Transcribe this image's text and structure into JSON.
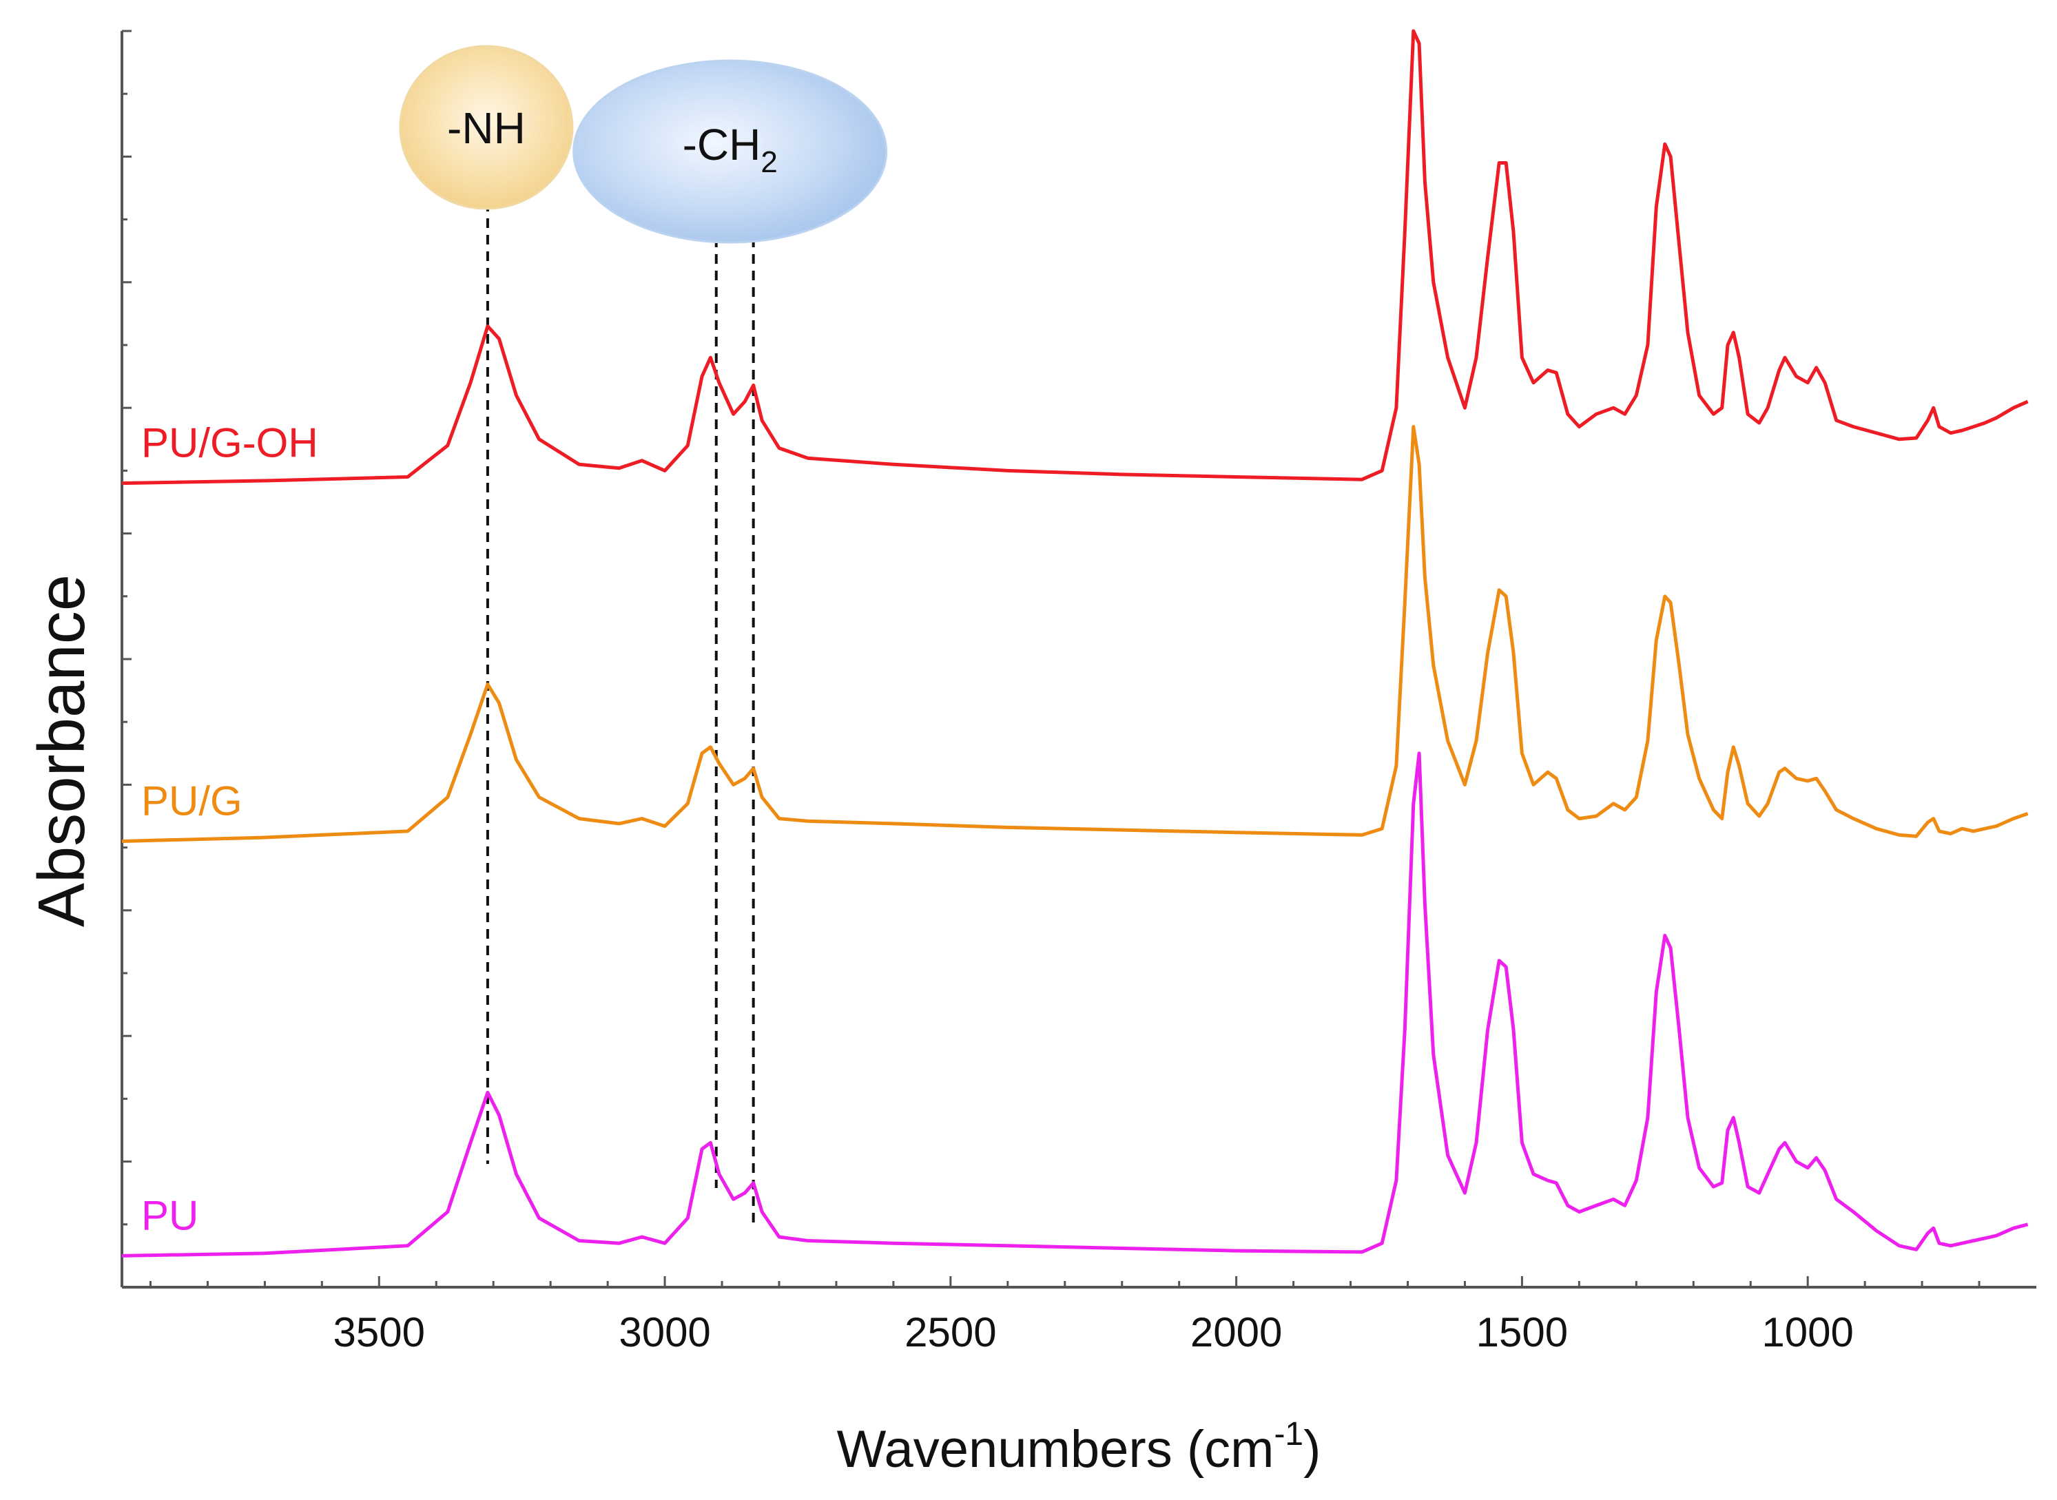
{
  "chart_data": {
    "type": "line",
    "title": "",
    "xlabel_main": "Wavenumbers (cm",
    "xlabel_sup": "-1",
    "xlabel_close": ")",
    "ylabel": "Absorbance",
    "xlim": [
      3950,
      600
    ],
    "x_inverted": true,
    "ylim": [
      0,
      1
    ],
    "y_tick_labels": false,
    "x_ticks": [
      3500,
      3000,
      2500,
      2000,
      1500,
      1000
    ],
    "x_tick_labels": [
      "3500",
      "3000",
      "2500",
      "2000",
      "1500",
      "1000"
    ],
    "grid": false,
    "annotations": [
      {
        "text": "-NH",
        "x": 3310,
        "color": "#f6d79a"
      },
      {
        "text": "-CH",
        "subscript": "2",
        "x": [
          2910,
          2845
        ],
        "color": "#a9c6ec"
      }
    ],
    "series": [
      {
        "name": "PU/G-OH",
        "color": "#ee1c24",
        "offset": 0.64,
        "points": [
          [
            3950,
            0.0
          ],
          [
            3700,
            0.002
          ],
          [
            3450,
            0.005
          ],
          [
            3380,
            0.03
          ],
          [
            3340,
            0.08
          ],
          [
            3310,
            0.125
          ],
          [
            3290,
            0.115
          ],
          [
            3260,
            0.07
          ],
          [
            3220,
            0.035
          ],
          [
            3150,
            0.015
          ],
          [
            3080,
            0.012
          ],
          [
            3040,
            0.018
          ],
          [
            3000,
            0.01
          ],
          [
            2960,
            0.03
          ],
          [
            2935,
            0.085
          ],
          [
            2920,
            0.1
          ],
          [
            2905,
            0.08
          ],
          [
            2880,
            0.055
          ],
          [
            2860,
            0.065
          ],
          [
            2845,
            0.078
          ],
          [
            2830,
            0.05
          ],
          [
            2800,
            0.028
          ],
          [
            2750,
            0.02
          ],
          [
            2600,
            0.015
          ],
          [
            2400,
            0.01
          ],
          [
            2200,
            0.007
          ],
          [
            2000,
            0.005
          ],
          [
            1780,
            0.003
          ],
          [
            1745,
            0.01
          ],
          [
            1720,
            0.06
          ],
          [
            1705,
            0.2
          ],
          [
            1690,
            0.36
          ],
          [
            1680,
            0.35
          ],
          [
            1670,
            0.24
          ],
          [
            1655,
            0.16
          ],
          [
            1630,
            0.1
          ],
          [
            1600,
            0.06
          ],
          [
            1580,
            0.1
          ],
          [
            1560,
            0.18
          ],
          [
            1540,
            0.255
          ],
          [
            1528,
            0.255
          ],
          [
            1515,
            0.2
          ],
          [
            1500,
            0.1
          ],
          [
            1480,
            0.08
          ],
          [
            1455,
            0.09
          ],
          [
            1440,
            0.088
          ],
          [
            1420,
            0.055
          ],
          [
            1400,
            0.045
          ],
          [
            1370,
            0.055
          ],
          [
            1340,
            0.06
          ],
          [
            1320,
            0.055
          ],
          [
            1300,
            0.07
          ],
          [
            1280,
            0.11
          ],
          [
            1265,
            0.22
          ],
          [
            1250,
            0.27
          ],
          [
            1240,
            0.26
          ],
          [
            1225,
            0.19
          ],
          [
            1210,
            0.12
          ],
          [
            1190,
            0.07
          ],
          [
            1165,
            0.055
          ],
          [
            1150,
            0.06
          ],
          [
            1140,
            0.11
          ],
          [
            1130,
            0.12
          ],
          [
            1120,
            0.1
          ],
          [
            1105,
            0.055
          ],
          [
            1085,
            0.048
          ],
          [
            1070,
            0.06
          ],
          [
            1050,
            0.09
          ],
          [
            1040,
            0.1
          ],
          [
            1020,
            0.085
          ],
          [
            1000,
            0.08
          ],
          [
            985,
            0.092
          ],
          [
            970,
            0.08
          ],
          [
            950,
            0.05
          ],
          [
            920,
            0.045
          ],
          [
            880,
            0.04
          ],
          [
            840,
            0.035
          ],
          [
            810,
            0.036
          ],
          [
            790,
            0.05
          ],
          [
            780,
            0.06
          ],
          [
            770,
            0.045
          ],
          [
            750,
            0.04
          ],
          [
            730,
            0.042
          ],
          [
            710,
            0.045
          ],
          [
            690,
            0.048
          ],
          [
            670,
            0.052
          ],
          [
            640,
            0.06
          ],
          [
            615,
            0.065
          ]
        ]
      },
      {
        "name": "PU/G",
        "color": "#ee8b12",
        "offset": 0.355,
        "points": [
          [
            3950,
            0.0
          ],
          [
            3700,
            0.003
          ],
          [
            3450,
            0.008
          ],
          [
            3380,
            0.035
          ],
          [
            3340,
            0.085
          ],
          [
            3310,
            0.125
          ],
          [
            3290,
            0.11
          ],
          [
            3260,
            0.065
          ],
          [
            3220,
            0.035
          ],
          [
            3150,
            0.018
          ],
          [
            3080,
            0.014
          ],
          [
            3040,
            0.018
          ],
          [
            3000,
            0.012
          ],
          [
            2960,
            0.03
          ],
          [
            2935,
            0.07
          ],
          [
            2920,
            0.075
          ],
          [
            2905,
            0.062
          ],
          [
            2880,
            0.045
          ],
          [
            2860,
            0.05
          ],
          [
            2845,
            0.058
          ],
          [
            2830,
            0.035
          ],
          [
            2800,
            0.018
          ],
          [
            2750,
            0.016
          ],
          [
            2600,
            0.014
          ],
          [
            2400,
            0.011
          ],
          [
            2200,
            0.009
          ],
          [
            2000,
            0.007
          ],
          [
            1780,
            0.005
          ],
          [
            1745,
            0.01
          ],
          [
            1720,
            0.06
          ],
          [
            1705,
            0.19
          ],
          [
            1690,
            0.33
          ],
          [
            1680,
            0.3
          ],
          [
            1670,
            0.21
          ],
          [
            1655,
            0.14
          ],
          [
            1630,
            0.08
          ],
          [
            1600,
            0.045
          ],
          [
            1580,
            0.08
          ],
          [
            1560,
            0.15
          ],
          [
            1540,
            0.2
          ],
          [
            1528,
            0.195
          ],
          [
            1515,
            0.15
          ],
          [
            1500,
            0.07
          ],
          [
            1480,
            0.045
          ],
          [
            1455,
            0.055
          ],
          [
            1440,
            0.05
          ],
          [
            1420,
            0.025
          ],
          [
            1400,
            0.018
          ],
          [
            1370,
            0.02
          ],
          [
            1340,
            0.03
          ],
          [
            1320,
            0.025
          ],
          [
            1300,
            0.035
          ],
          [
            1280,
            0.08
          ],
          [
            1265,
            0.16
          ],
          [
            1250,
            0.195
          ],
          [
            1240,
            0.19
          ],
          [
            1225,
            0.14
          ],
          [
            1210,
            0.085
          ],
          [
            1190,
            0.05
          ],
          [
            1165,
            0.025
          ],
          [
            1150,
            0.018
          ],
          [
            1140,
            0.055
          ],
          [
            1130,
            0.075
          ],
          [
            1120,
            0.06
          ],
          [
            1105,
            0.03
          ],
          [
            1085,
            0.02
          ],
          [
            1070,
            0.03
          ],
          [
            1050,
            0.055
          ],
          [
            1040,
            0.058
          ],
          [
            1020,
            0.05
          ],
          [
            1000,
            0.048
          ],
          [
            985,
            0.05
          ],
          [
            970,
            0.04
          ],
          [
            950,
            0.025
          ],
          [
            920,
            0.018
          ],
          [
            880,
            0.01
          ],
          [
            840,
            0.005
          ],
          [
            810,
            0.004
          ],
          [
            790,
            0.015
          ],
          [
            780,
            0.018
          ],
          [
            770,
            0.008
          ],
          [
            750,
            0.006
          ],
          [
            730,
            0.01
          ],
          [
            710,
            0.008
          ],
          [
            690,
            0.01
          ],
          [
            670,
            0.012
          ],
          [
            640,
            0.018
          ],
          [
            615,
            0.022
          ]
        ]
      },
      {
        "name": "PU",
        "color": "#ee20ee",
        "offset": 0.025,
        "points": [
          [
            3950,
            0.0
          ],
          [
            3700,
            0.002
          ],
          [
            3450,
            0.008
          ],
          [
            3380,
            0.035
          ],
          [
            3340,
            0.09
          ],
          [
            3310,
            0.13
          ],
          [
            3290,
            0.112
          ],
          [
            3260,
            0.065
          ],
          [
            3220,
            0.03
          ],
          [
            3150,
            0.012
          ],
          [
            3080,
            0.01
          ],
          [
            3040,
            0.015
          ],
          [
            3000,
            0.01
          ],
          [
            2960,
            0.03
          ],
          [
            2935,
            0.085
          ],
          [
            2920,
            0.09
          ],
          [
            2905,
            0.065
          ],
          [
            2880,
            0.045
          ],
          [
            2860,
            0.05
          ],
          [
            2845,
            0.058
          ],
          [
            2830,
            0.035
          ],
          [
            2800,
            0.015
          ],
          [
            2750,
            0.012
          ],
          [
            2600,
            0.01
          ],
          [
            2400,
            0.008
          ],
          [
            2200,
            0.006
          ],
          [
            2000,
            0.004
          ],
          [
            1780,
            0.003
          ],
          [
            1745,
            0.01
          ],
          [
            1720,
            0.06
          ],
          [
            1705,
            0.18
          ],
          [
            1690,
            0.36
          ],
          [
            1680,
            0.4
          ],
          [
            1670,
            0.28
          ],
          [
            1655,
            0.16
          ],
          [
            1630,
            0.08
          ],
          [
            1600,
            0.05
          ],
          [
            1580,
            0.09
          ],
          [
            1560,
            0.18
          ],
          [
            1540,
            0.235
          ],
          [
            1528,
            0.23
          ],
          [
            1515,
            0.18
          ],
          [
            1500,
            0.09
          ],
          [
            1480,
            0.065
          ],
          [
            1455,
            0.06
          ],
          [
            1440,
            0.058
          ],
          [
            1420,
            0.04
          ],
          [
            1400,
            0.035
          ],
          [
            1370,
            0.04
          ],
          [
            1340,
            0.045
          ],
          [
            1320,
            0.04
          ],
          [
            1300,
            0.06
          ],
          [
            1280,
            0.11
          ],
          [
            1265,
            0.21
          ],
          [
            1250,
            0.255
          ],
          [
            1240,
            0.245
          ],
          [
            1225,
            0.18
          ],
          [
            1210,
            0.11
          ],
          [
            1190,
            0.07
          ],
          [
            1165,
            0.055
          ],
          [
            1150,
            0.058
          ],
          [
            1140,
            0.1
          ],
          [
            1130,
            0.11
          ],
          [
            1120,
            0.09
          ],
          [
            1105,
            0.055
          ],
          [
            1085,
            0.05
          ],
          [
            1070,
            0.065
          ],
          [
            1050,
            0.085
          ],
          [
            1040,
            0.09
          ],
          [
            1020,
            0.075
          ],
          [
            1000,
            0.07
          ],
          [
            985,
            0.078
          ],
          [
            970,
            0.068
          ],
          [
            950,
            0.045
          ],
          [
            920,
            0.035
          ],
          [
            880,
            0.02
          ],
          [
            840,
            0.008
          ],
          [
            810,
            0.005
          ],
          [
            790,
            0.018
          ],
          [
            780,
            0.022
          ],
          [
            770,
            0.01
          ],
          [
            750,
            0.008
          ],
          [
            730,
            0.01
          ],
          [
            710,
            0.012
          ],
          [
            690,
            0.014
          ],
          [
            670,
            0.016
          ],
          [
            640,
            0.022
          ],
          [
            615,
            0.025
          ]
        ]
      }
    ]
  }
}
